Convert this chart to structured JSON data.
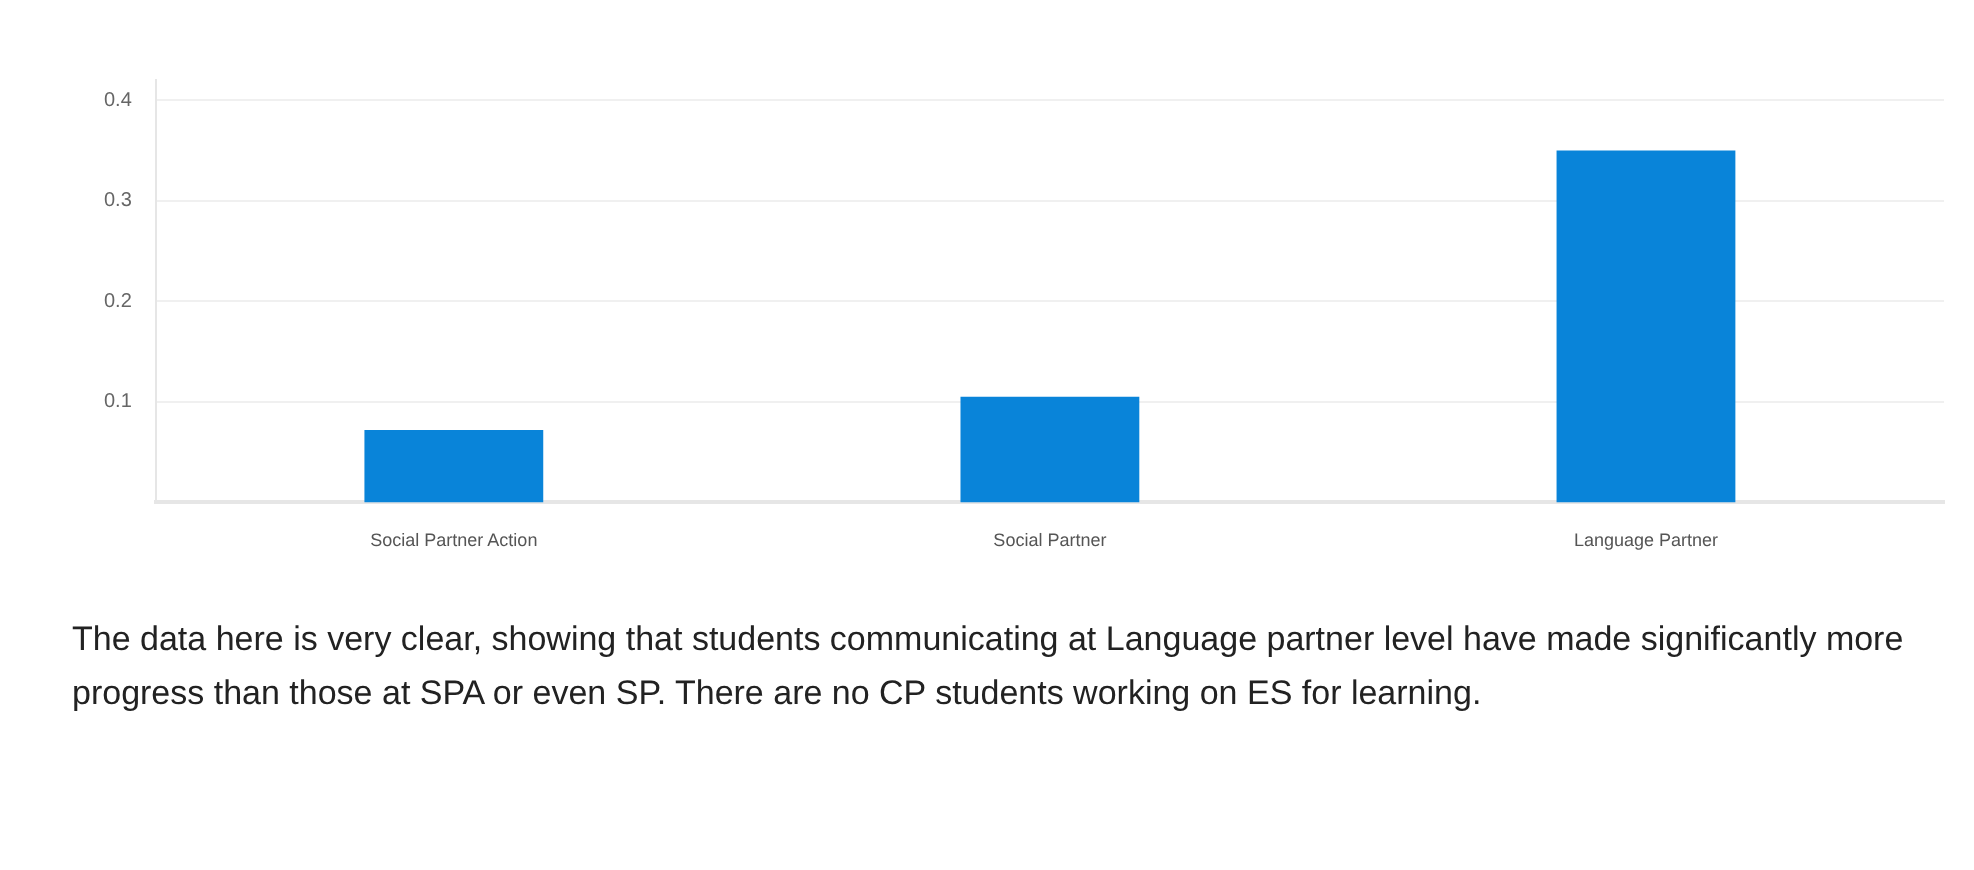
{
  "chart_data": {
    "type": "bar",
    "categories": [
      "Social Partner Action",
      "Social Partner",
      "Language Partner"
    ],
    "values": [
      0.072,
      0.105,
      0.35
    ],
    "color": "#0984d9",
    "ylim": [
      0,
      0.42
    ],
    "yticks": [
      0.1,
      0.2,
      0.3,
      0.4
    ],
    "grid": "y",
    "legend": false,
    "annotations": [
      "The data here is very clear, showing that students communicating at Language partner level have made significantly more progress than those at SPA or even SP. There are no CP students working on ES for learning."
    ]
  }
}
